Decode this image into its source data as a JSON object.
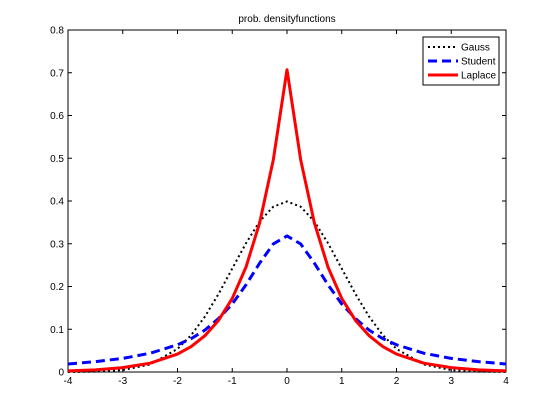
{
  "chart_data": {
    "type": "line",
    "title": "prob. densityfunctions",
    "xlabel": "",
    "ylabel": "",
    "xlim": [
      -4,
      4
    ],
    "ylim": [
      0,
      0.8
    ],
    "xticks": [
      "-4",
      "-3",
      "-2",
      "-1",
      "0",
      "1",
      "2",
      "3",
      "4"
    ],
    "yticks": [
      "0",
      "0.1",
      "0.2",
      "0.3",
      "0.4",
      "0.5",
      "0.6",
      "0.7",
      "0.8"
    ],
    "legend_position": "top-right",
    "grid": false,
    "x": [
      -4,
      -3.5,
      -3,
      -2.5,
      -2,
      -1.75,
      -1.5,
      -1.25,
      -1,
      -0.75,
      -0.5,
      -0.25,
      0,
      0.25,
      0.5,
      0.75,
      1,
      1.25,
      1.5,
      1.75,
      2,
      2.5,
      3,
      3.5,
      4
    ],
    "series": [
      {
        "name": "Gauss",
        "color": "#000000",
        "style": "dotted",
        "values": [
          0.0001,
          0.0009,
          0.0044,
          0.0175,
          0.054,
          0.0863,
          0.1295,
          0.1826,
          0.242,
          0.3011,
          0.3521,
          0.3867,
          0.3989,
          0.3867,
          0.3521,
          0.3011,
          0.242,
          0.1826,
          0.1295,
          0.0863,
          0.054,
          0.0175,
          0.0044,
          0.0009,
          0.0001
        ]
      },
      {
        "name": "Student",
        "color": "#0000ff",
        "style": "dashed",
        "values": [
          0.0187,
          0.0242,
          0.0318,
          0.0439,
          0.0637,
          0.078,
          0.0979,
          0.125,
          0.1592,
          0.2037,
          0.2546,
          0.2995,
          0.3183,
          0.2995,
          0.2546,
          0.2037,
          0.1592,
          0.125,
          0.0979,
          0.078,
          0.0637,
          0.0439,
          0.0318,
          0.0242,
          0.0187
        ]
      },
      {
        "name": "Laplace",
        "color": "#ff0000",
        "style": "solid",
        "values": [
          0.0025,
          0.005,
          0.0102,
          0.0206,
          0.0419,
          0.0596,
          0.0849,
          0.1209,
          0.1721,
          0.245,
          0.3487,
          0.4964,
          0.7071,
          0.4964,
          0.3487,
          0.245,
          0.1721,
          0.1209,
          0.0849,
          0.0596,
          0.0419,
          0.0206,
          0.0102,
          0.005,
          0.0025
        ]
      }
    ]
  }
}
